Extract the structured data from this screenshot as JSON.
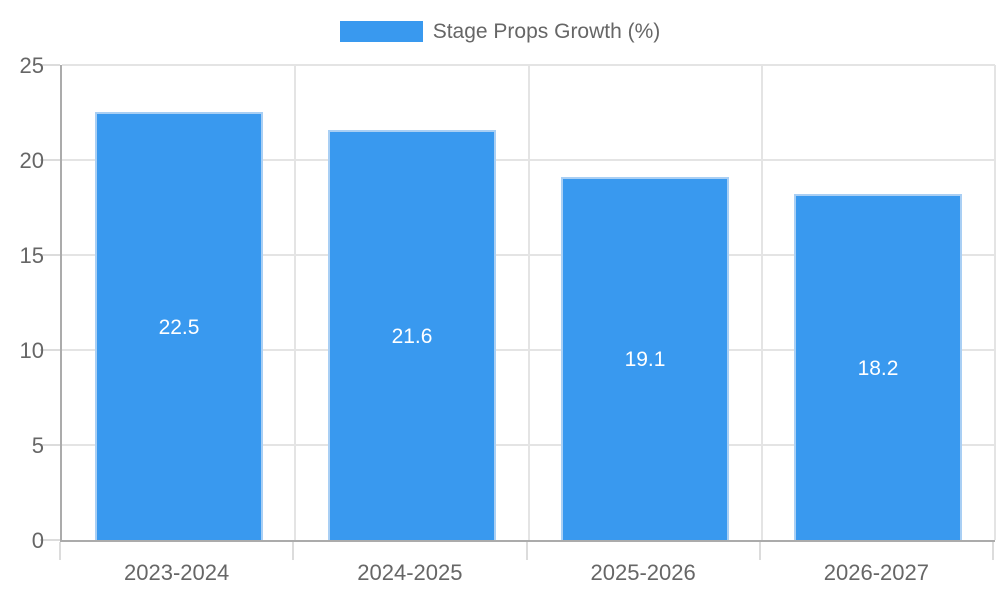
{
  "legend": {
    "label": "Stage Props Growth (%)"
  },
  "colors": {
    "bar": "#3999EF",
    "bar_border": "#A9CFF4",
    "axis": "#ABABAB",
    "grid": "#E4E4E4",
    "tick": "#DCDCDC",
    "text": "#666666",
    "value_label": "#FFFFFF",
    "background": "#FFFFFF"
  },
  "chart_data": {
    "type": "bar",
    "title": "",
    "xlabel": "",
    "ylabel": "",
    "categories": [
      "2023-2024",
      "2024-2025",
      "2025-2026",
      "2026-2027"
    ],
    "series": [
      {
        "name": "Stage Props Growth (%)",
        "values": [
          22.5,
          21.6,
          19.1,
          18.2
        ]
      }
    ],
    "value_labels": [
      "22.5",
      "21.6",
      "19.1",
      "18.2"
    ],
    "ylim": [
      0,
      25
    ],
    "yticks": [
      0,
      5,
      10,
      15,
      20,
      25
    ],
    "grid": true,
    "legend_position": "top"
  }
}
